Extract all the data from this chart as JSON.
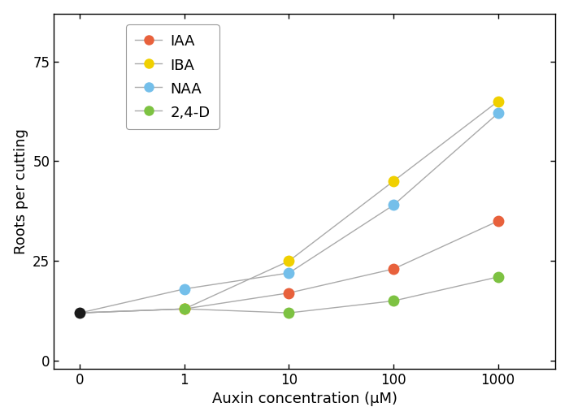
{
  "x_positions": [
    0,
    1,
    2,
    3,
    4
  ],
  "x_labels": [
    "0",
    "1",
    "10",
    "100",
    "1000"
  ],
  "series": {
    "IAA": [
      12,
      13,
      17,
      23,
      35
    ],
    "IBA": [
      12,
      13,
      25,
      45,
      65
    ],
    "NAA": [
      12,
      18,
      22,
      39,
      62
    ],
    "2,4-D": [
      12,
      13,
      12,
      15,
      21
    ]
  },
  "colors": {
    "IAA": "#E8613C",
    "IBA": "#F0D000",
    "NAA": "#74BFEA",
    "2,4-D": "#7DC242"
  },
  "x0_color": "#1a1a1a",
  "line_color": "#aaaaaa",
  "xlabel": "Auxin concentration (μM)",
  "ylabel": "Roots per cutting",
  "ylim": [
    -2,
    87
  ],
  "yticks": [
    0,
    25,
    50,
    75
  ],
  "xlim": [
    -0.25,
    4.55
  ],
  "marker_size": 10,
  "line_width": 1.0,
  "background_color": "#ffffff",
  "legend_labels": [
    "IAA",
    "IBA",
    "NAA",
    "2,4-D"
  ],
  "fontsize_ticks": 12,
  "fontsize_labels": 13,
  "fontsize_legend": 13
}
